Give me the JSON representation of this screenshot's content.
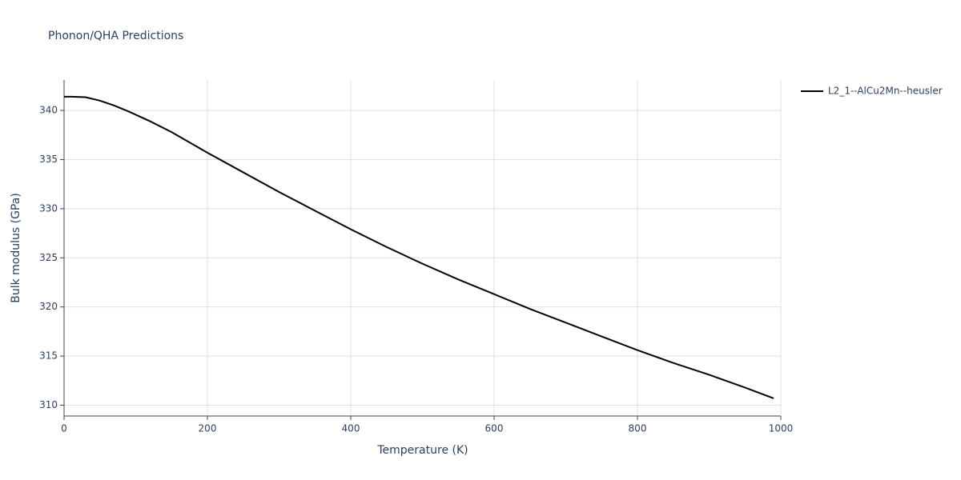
{
  "chart_data": {
    "type": "line",
    "title": "Phonon/QHA Predictions",
    "x_label": "Temperature (K)",
    "y_label": "Bulk modulus (GPa)",
    "x": [
      0,
      10,
      30,
      50,
      70,
      90,
      120,
      150,
      200,
      250,
      300,
      350,
      400,
      450,
      500,
      550,
      600,
      650,
      700,
      750,
      800,
      850,
      900,
      950,
      990
    ],
    "series": [
      {
        "name": "L2_1--AlCu2Mn--heusler",
        "color": "#000000",
        "values": [
          341.4,
          341.4,
          341.35,
          341.0,
          340.5,
          339.9,
          338.9,
          337.8,
          335.7,
          333.7,
          331.7,
          329.8,
          327.9,
          326.1,
          324.4,
          322.8,
          321.3,
          319.8,
          318.4,
          317.0,
          315.6,
          314.3,
          313.1,
          311.8,
          310.7
        ]
      }
    ],
    "xlim": [
      0,
      1000
    ],
    "xticks": [
      0,
      200,
      400,
      600,
      800,
      1000
    ],
    "ylim": [
      308.9,
      343.1
    ],
    "yticks": [
      310,
      315,
      320,
      325,
      330,
      335,
      340
    ],
    "grid": true,
    "legend": "right"
  }
}
